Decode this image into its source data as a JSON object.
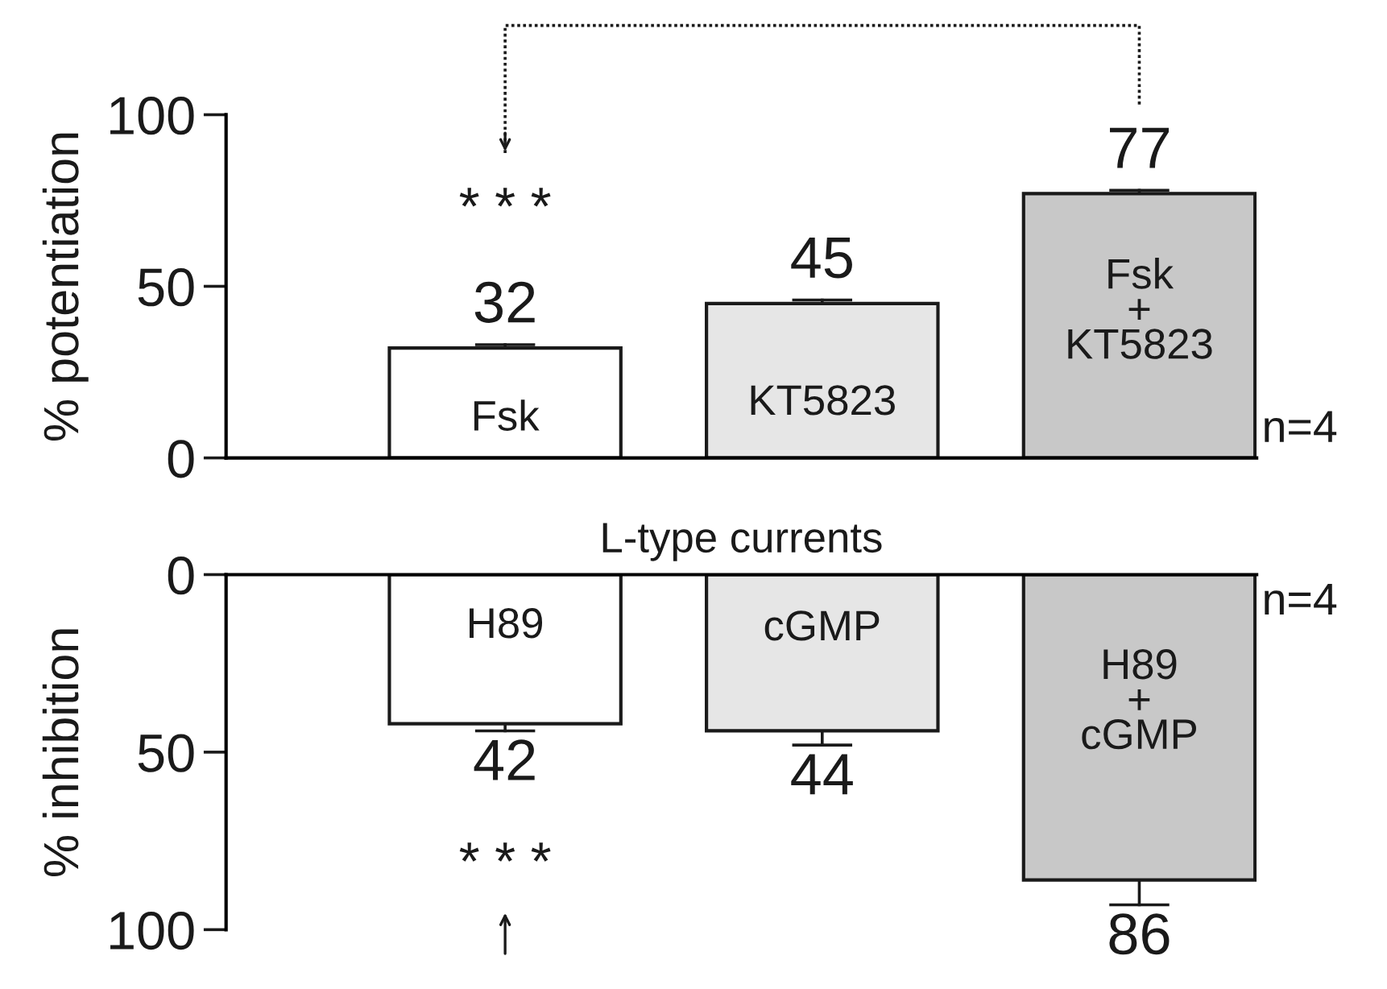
{
  "chart_data": [
    {
      "type": "bar",
      "categories": [
        "Fsk",
        "KT5823",
        "Fsk\n+\nKT5823"
      ],
      "values": [
        32,
        45,
        77
      ],
      "colors": [
        "#ffffff",
        "#e6e6e6",
        "#c8c8c8"
      ],
      "errors": [
        1,
        1,
        1
      ],
      "ylabel": "% potentiation",
      "ylim": [
        0,
        100
      ],
      "yticks": [
        0,
        50,
        100
      ],
      "data_labels": true,
      "grid": false,
      "legend": false,
      "annotations": [
        "* * *",
        "n=4"
      ]
    },
    {
      "type": "bar",
      "title": "L-type currents",
      "categories": [
        "H89",
        "cGMP",
        "H89\n+\ncGMP"
      ],
      "values": [
        42,
        44,
        86
      ],
      "colors": [
        "#ffffff",
        "#e6e6e6",
        "#c8c8c8"
      ],
      "errors": [
        2,
        4,
        7
      ],
      "ylabel": "% inhibition",
      "ylim": [
        100,
        0
      ],
      "yticks": [
        0,
        50,
        100
      ],
      "data_labels": true,
      "grid": false,
      "legend": false,
      "annotations": [
        "* * *",
        "n=4"
      ]
    }
  ]
}
